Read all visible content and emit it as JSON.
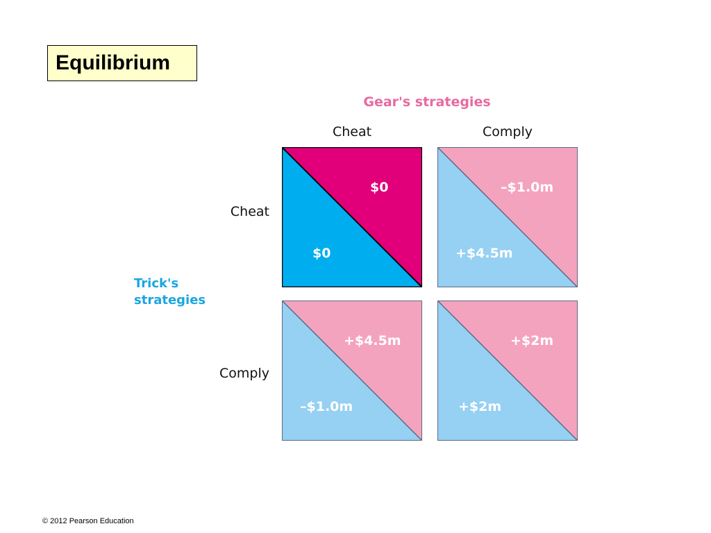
{
  "title": "Equilibrium",
  "column_player": {
    "label": "Gear's strategies",
    "strategies": [
      "Cheat",
      "Comply"
    ]
  },
  "row_player": {
    "label_line1": "Trick's",
    "label_line2": "strategies",
    "strategies": [
      "Cheat",
      "Comply"
    ]
  },
  "cells": [
    {
      "row": "Cheat",
      "col": "Cheat",
      "gear_payoff": "$0",
      "trick_payoff": "$0",
      "equilibrium": true
    },
    {
      "row": "Cheat",
      "col": "Comply",
      "gear_payoff": "–$1.0m",
      "trick_payoff": "+$4.5m",
      "equilibrium": false
    },
    {
      "row": "Comply",
      "col": "Cheat",
      "gear_payoff": "+$4.5m",
      "trick_payoff": "–$1.0m",
      "equilibrium": false
    },
    {
      "row": "Comply",
      "col": "Comply",
      "gear_payoff": "+$2m",
      "trick_payoff": "+$2m",
      "equilibrium": false
    }
  ],
  "colors": {
    "gear_highlight": "#e2007a",
    "trick_highlight": "#00aeef",
    "gear_normal": "#f4a3bf",
    "trick_normal": "#96d0f3",
    "gear_label": "#e86aa0",
    "trick_label": "#1aa6e0"
  },
  "footer": "© 2012 Pearson Education"
}
